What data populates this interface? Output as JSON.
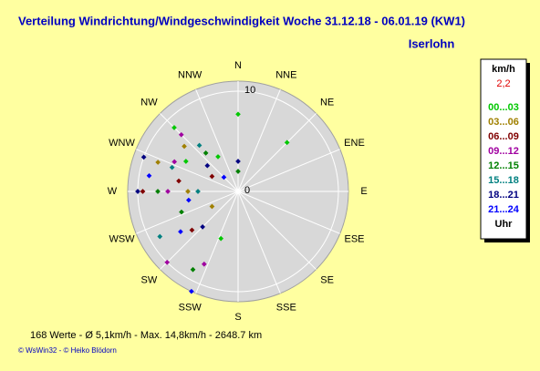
{
  "chart_data": {
    "type": "polar-scatter",
    "title": "Verteilung Windrichtung/Windgeschwindigkeit  Woche 31.12.18 - 06.01.19 (KW1)",
    "subtitle": "Iserlohn",
    "directions": [
      "N",
      "NNE",
      "NE",
      "ENE",
      "E",
      "ESE",
      "SE",
      "SSE",
      "S",
      "SSW",
      "SW",
      "WSW",
      "W",
      "WNW",
      "NW",
      "NNW"
    ],
    "rlim": [
      0,
      11
    ],
    "rticks": [
      0,
      10
    ],
    "legend_title": "km/h",
    "legend_value": "2,2",
    "legend_footer": "Uhr",
    "series": [
      {
        "name": "00...03",
        "color": "#00c800",
        "theta": [
          315,
          300,
          0,
          45,
          200,
          330
        ],
        "r": [
          9,
          6,
          7.7,
          6.9,
          5,
          4
        ]
      },
      {
        "name": "03...06",
        "color": "#a08000",
        "theta": [
          290,
          270,
          310,
          240
        ],
        "r": [
          8.5,
          5,
          7,
          3
        ]
      },
      {
        "name": "06...09",
        "color": "#800000",
        "theta": [
          270,
          280,
          230,
          300
        ],
        "r": [
          9.5,
          6,
          6,
          3
        ]
      },
      {
        "name": "09...12",
        "color": "#a000a0",
        "theta": [
          315,
          205,
          225,
          295,
          270
        ],
        "r": [
          8,
          8,
          10,
          7,
          7
        ]
      },
      {
        "name": "12...15",
        "color": "#008000",
        "theta": [
          270,
          320,
          250,
          0,
          210
        ],
        "r": [
          8,
          5,
          6,
          2,
          9
        ]
      },
      {
        "name": "15...18",
        "color": "#008080",
        "theta": [
          290,
          270,
          240,
          320
        ],
        "r": [
          7,
          4,
          9,
          6
        ]
      },
      {
        "name": "18...21",
        "color": "#000080",
        "theta": [
          270,
          225,
          290,
          310,
          0
        ],
        "r": [
          10,
          5,
          10,
          4,
          3
        ]
      },
      {
        "name": "21...24",
        "color": "#0000ff",
        "theta": [
          280,
          260,
          235,
          205,
          315
        ],
        "r": [
          9,
          5,
          7,
          11,
          2
        ]
      }
    ],
    "footer": "168 Werte   -   Ø 5,1km/h  -  Max. 14,8km/h   -   2648.7 km",
    "credits": "© WsWin32  -  © Heiko Blödorn"
  }
}
